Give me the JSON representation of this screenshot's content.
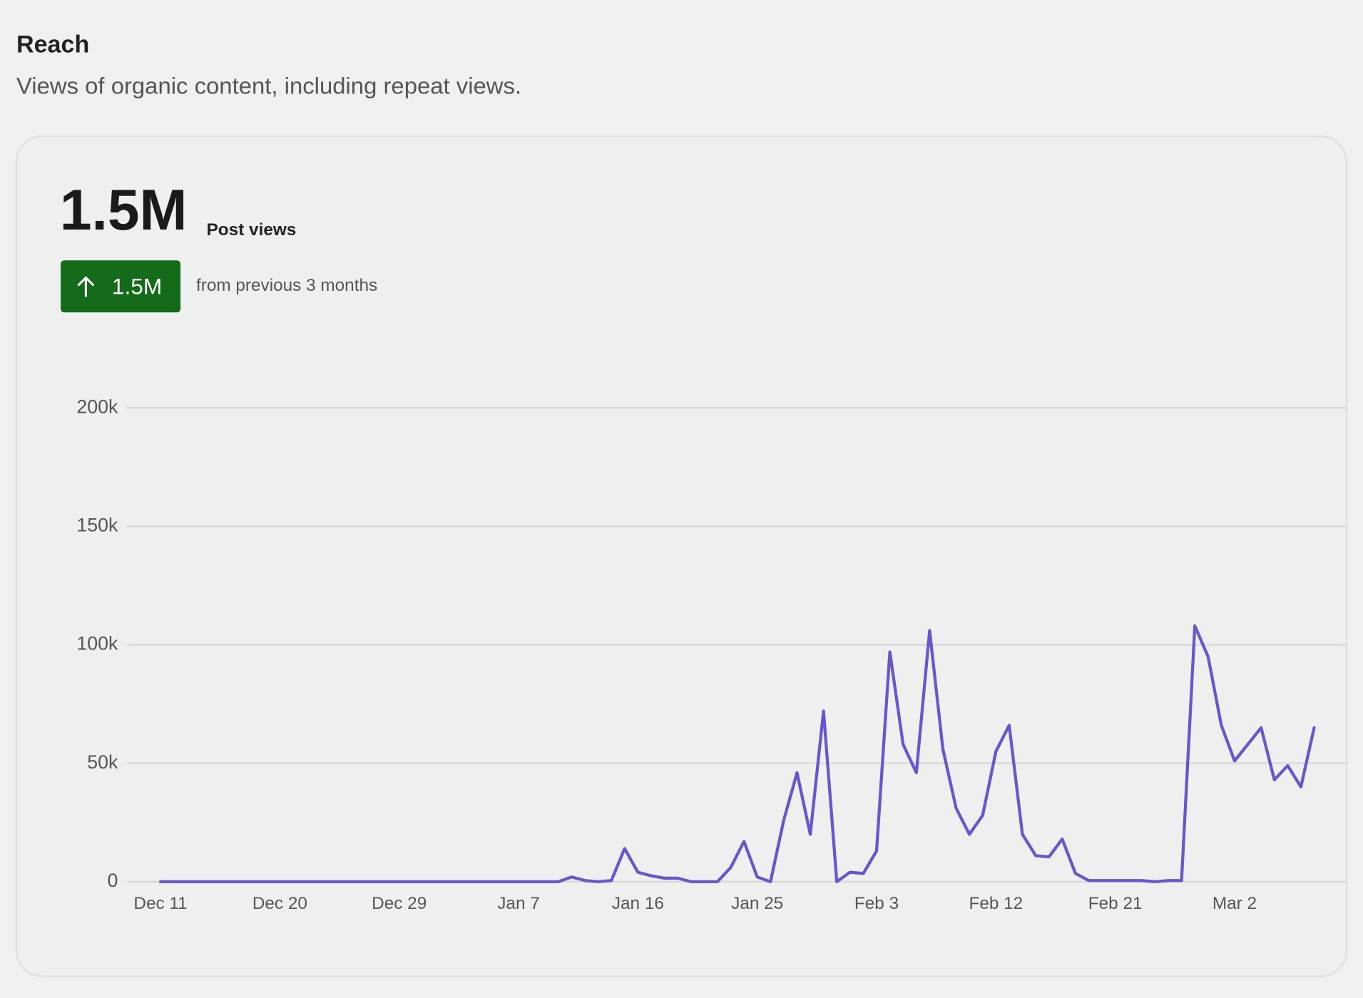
{
  "header": {
    "title": "Reach",
    "subtitle": "Views of organic content, including repeat views."
  },
  "summary": {
    "total": "1.5M",
    "total_label": "Post views",
    "change": "1.5M",
    "change_label": "from previous 3 months"
  },
  "chart_data": {
    "type": "line",
    "categories": [
      "Dec 11",
      null,
      null,
      null,
      null,
      null,
      null,
      null,
      null,
      "Dec 20",
      null,
      null,
      null,
      null,
      null,
      null,
      null,
      null,
      "Dec 29",
      null,
      null,
      null,
      null,
      null,
      null,
      null,
      null,
      "Jan 7",
      null,
      null,
      null,
      null,
      null,
      null,
      null,
      null,
      "Jan 16",
      null,
      null,
      null,
      null,
      null,
      null,
      null,
      null,
      "Jan 25",
      null,
      null,
      null,
      null,
      null,
      null,
      null,
      null,
      "Feb 3",
      null,
      null,
      null,
      null,
      null,
      null,
      null,
      null,
      "Feb 12",
      null,
      null,
      null,
      null,
      null,
      null,
      null,
      null,
      "Feb 21",
      null,
      null,
      null,
      null,
      null,
      null,
      null,
      null,
      "Mar 2",
      null,
      null,
      null,
      null,
      null,
      null
    ],
    "values": [
      0,
      0,
      0,
      0,
      0,
      0,
      0,
      0,
      0,
      0,
      0,
      0,
      0,
      0,
      0,
      0,
      0,
      0,
      0,
      0,
      0,
      0,
      0,
      0,
      0,
      0,
      0,
      0,
      0,
      0,
      0,
      2000,
      500,
      0,
      500,
      14000,
      4000,
      2500,
      1500,
      1500,
      0,
      0,
      0,
      6000,
      17000,
      2000,
      0,
      26000,
      46000,
      20000,
      72000,
      0,
      4000,
      3500,
      13000,
      97000,
      58000,
      46000,
      106000,
      56000,
      31000,
      20000,
      28000,
      55000,
      66000,
      20000,
      11000,
      10500,
      18000,
      3500,
      500,
      500,
      500,
      500,
      500,
      0,
      500,
      500,
      108000,
      95000,
      66000,
      51000,
      58000,
      65000,
      43000,
      49000,
      40000,
      65000
    ],
    "color": "#6a55c9",
    "ylim": [
      0,
      200000
    ],
    "yticks": [
      {
        "value": 0,
        "label": "0"
      },
      {
        "value": 50000,
        "label": "50k"
      },
      {
        "value": 100000,
        "label": "100k"
      },
      {
        "value": 150000,
        "label": "150k"
      },
      {
        "value": 200000,
        "label": "200k"
      }
    ],
    "grid": true
  }
}
